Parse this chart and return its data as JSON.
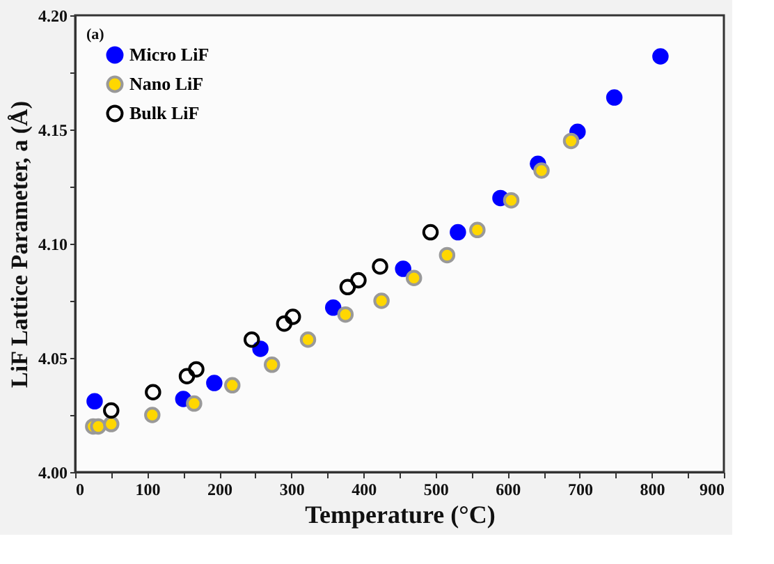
{
  "chart_data": {
    "type": "scatter",
    "xlabel": "Temperature (°C)",
    "ylabel": "LiF Lattice Parameter, a (Å)",
    "annotations": [
      "(a)"
    ],
    "xlim": [
      0,
      900
    ],
    "ylim": [
      4.0,
      4.2
    ],
    "xticks": [
      0,
      {
        "value": 50,
        "label": null
      },
      100,
      {
        "value": 150,
        "label": null
      },
      200,
      {
        "value": 250,
        "label": null
      },
      300,
      {
        "value": 350,
        "label": null
      },
      400,
      {
        "value": 450,
        "label": null
      },
      500,
      {
        "value": 550,
        "label": null
      },
      600,
      {
        "value": 650,
        "label": null
      },
      700,
      {
        "value": 750,
        "label": null
      },
      800,
      {
        "value": 850,
        "label": null
      },
      900
    ],
    "yticks": [
      {
        "value": 4.0,
        "label": "4.00"
      },
      {
        "value": 4.025,
        "label": null
      },
      {
        "value": 4.05,
        "label": "4.05"
      },
      {
        "value": 4.075,
        "label": null
      },
      {
        "value": 4.1,
        "label": "4.10"
      },
      {
        "value": 4.125,
        "label": null
      },
      {
        "value": 4.15,
        "label": "4.15"
      },
      {
        "value": 4.175,
        "label": null
      },
      {
        "value": 4.2,
        "label": "4.20"
      }
    ],
    "marker": "circle",
    "legend": "top left",
    "grid": false,
    "series": [
      {
        "name": "Micro LiF",
        "color": "#0000ff",
        "x": [
          27,
          150,
          193,
          257,
          358,
          455,
          531,
          590,
          642,
          697,
          748,
          812
        ],
        "values": [
          4.031,
          4.032,
          4.039,
          4.054,
          4.072,
          4.089,
          4.105,
          4.12,
          4.135,
          4.149,
          4.164,
          4.182
        ]
      },
      {
        "name": "Nano LiF",
        "color": "#ffd700",
        "x": [
          25,
          32,
          50,
          107,
          165,
          218,
          273,
          323,
          375,
          425,
          470,
          516,
          558,
          605,
          647,
          688
        ],
        "values": [
          4.02,
          4.02,
          4.021,
          4.025,
          4.03,
          4.038,
          4.047,
          4.058,
          4.069,
          4.075,
          4.085,
          4.095,
          4.106,
          4.119,
          4.132,
          4.145
        ]
      },
      {
        "name": "Bulk LiF",
        "color": "#000000",
        "marker": "circle-open",
        "x": [
          50,
          108,
          155,
          168,
          245,
          290,
          302,
          378,
          393,
          423,
          493
        ],
        "values": [
          4.027,
          4.035,
          4.042,
          4.045,
          4.058,
          4.065,
          4.068,
          4.081,
          4.084,
          4.09,
          4.105
        ]
      }
    ]
  }
}
